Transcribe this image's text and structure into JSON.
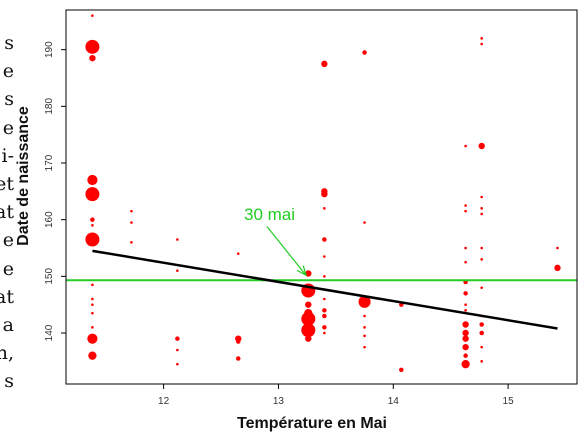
{
  "margin_text": [
    "s",
    "e",
    "s",
    "e",
    "i-",
    "et",
    "at",
    "e",
    "e",
    "at",
    "a",
    "n,",
    "s"
  ],
  "chart_data": {
    "type": "scatter",
    "xlabel": "Température en Mai",
    "ylabel": "Date de naissance",
    "xlim": [
      11.15,
      15.6
    ],
    "ylim": [
      131,
      197
    ],
    "xticks": [
      12,
      13,
      14,
      15
    ],
    "yticks": [
      140,
      150,
      160,
      170,
      180,
      190
    ],
    "grid": false,
    "colors": {
      "points": "#ff0000",
      "regression": "#000000",
      "reference": "#22cc22",
      "annotation": "#22cc22"
    },
    "points": [
      {
        "x": 11.38,
        "y": 196,
        "size": 1
      },
      {
        "x": 11.38,
        "y": 190.5,
        "size": 7
      },
      {
        "x": 11.38,
        "y": 188.5,
        "size": 3
      },
      {
        "x": 11.38,
        "y": 167,
        "size": 5
      },
      {
        "x": 11.38,
        "y": 164.5,
        "size": 7
      },
      {
        "x": 11.38,
        "y": 160,
        "size": 2
      },
      {
        "x": 11.38,
        "y": 159,
        "size": 1
      },
      {
        "x": 11.38,
        "y": 156.5,
        "size": 7
      },
      {
        "x": 11.38,
        "y": 148.5,
        "size": 1
      },
      {
        "x": 11.38,
        "y": 146,
        "size": 1
      },
      {
        "x": 11.38,
        "y": 145,
        "size": 1
      },
      {
        "x": 11.38,
        "y": 143.5,
        "size": 1
      },
      {
        "x": 11.38,
        "y": 141,
        "size": 1
      },
      {
        "x": 11.38,
        "y": 139,
        "size": 5
      },
      {
        "x": 11.38,
        "y": 136,
        "size": 4
      },
      {
        "x": 11.72,
        "y": 161.5,
        "size": 1
      },
      {
        "x": 11.72,
        "y": 159.5,
        "size": 1
      },
      {
        "x": 11.72,
        "y": 156,
        "size": 1
      },
      {
        "x": 12.12,
        "y": 156.5,
        "size": 1
      },
      {
        "x": 12.12,
        "y": 151,
        "size": 1
      },
      {
        "x": 12.12,
        "y": 139,
        "size": 2
      },
      {
        "x": 12.12,
        "y": 137,
        "size": 1
      },
      {
        "x": 12.12,
        "y": 134.5,
        "size": 1
      },
      {
        "x": 12.65,
        "y": 154,
        "size": 1
      },
      {
        "x": 12.65,
        "y": 139,
        "size": 3
      },
      {
        "x": 12.65,
        "y": 138.5,
        "size": 2
      },
      {
        "x": 12.65,
        "y": 135.5,
        "size": 2
      },
      {
        "x": 13.26,
        "y": 150.5,
        "size": 3
      },
      {
        "x": 13.26,
        "y": 147.5,
        "size": 7
      },
      {
        "x": 13.26,
        "y": 145,
        "size": 3
      },
      {
        "x": 13.26,
        "y": 143.5,
        "size": 4
      },
      {
        "x": 13.26,
        "y": 142.5,
        "size": 7
      },
      {
        "x": 13.26,
        "y": 141.5,
        "size": 4
      },
      {
        "x": 13.26,
        "y": 140.5,
        "size": 7
      },
      {
        "x": 13.26,
        "y": 139,
        "size": 3
      },
      {
        "x": 13.4,
        "y": 187.5,
        "size": 3
      },
      {
        "x": 13.4,
        "y": 165,
        "size": 3
      },
      {
        "x": 13.4,
        "y": 164.5,
        "size": 3
      },
      {
        "x": 13.4,
        "y": 162,
        "size": 1
      },
      {
        "x": 13.4,
        "y": 156.5,
        "size": 2
      },
      {
        "x": 13.4,
        "y": 153.5,
        "size": 1
      },
      {
        "x": 13.4,
        "y": 150,
        "size": 1
      },
      {
        "x": 13.4,
        "y": 146,
        "size": 1
      },
      {
        "x": 13.4,
        "y": 144,
        "size": 2
      },
      {
        "x": 13.4,
        "y": 143,
        "size": 2
      },
      {
        "x": 13.4,
        "y": 141,
        "size": 2
      },
      {
        "x": 13.4,
        "y": 140,
        "size": 1
      },
      {
        "x": 13.75,
        "y": 189.5,
        "size": 2
      },
      {
        "x": 13.75,
        "y": 159.5,
        "size": 1
      },
      {
        "x": 13.75,
        "y": 145.5,
        "size": 6
      },
      {
        "x": 13.75,
        "y": 143,
        "size": 1
      },
      {
        "x": 13.75,
        "y": 141,
        "size": 1
      },
      {
        "x": 13.75,
        "y": 139.5,
        "size": 1
      },
      {
        "x": 13.75,
        "y": 137.5,
        "size": 1
      },
      {
        "x": 14.07,
        "y": 145,
        "size": 2
      },
      {
        "x": 14.07,
        "y": 133.5,
        "size": 2
      },
      {
        "x": 14.63,
        "y": 173,
        "size": 1
      },
      {
        "x": 14.63,
        "y": 162.5,
        "size": 1
      },
      {
        "x": 14.63,
        "y": 161.5,
        "size": 1
      },
      {
        "x": 14.63,
        "y": 155,
        "size": 1
      },
      {
        "x": 14.63,
        "y": 152.5,
        "size": 1
      },
      {
        "x": 14.63,
        "y": 149,
        "size": 2
      },
      {
        "x": 14.63,
        "y": 147,
        "size": 2
      },
      {
        "x": 14.63,
        "y": 145,
        "size": 1
      },
      {
        "x": 14.63,
        "y": 144,
        "size": 1
      },
      {
        "x": 14.63,
        "y": 141.5,
        "size": 3
      },
      {
        "x": 14.63,
        "y": 140,
        "size": 3
      },
      {
        "x": 14.63,
        "y": 139,
        "size": 3
      },
      {
        "x": 14.63,
        "y": 137.5,
        "size": 3
      },
      {
        "x": 14.63,
        "y": 136,
        "size": 2
      },
      {
        "x": 14.63,
        "y": 134.5,
        "size": 4
      },
      {
        "x": 14.77,
        "y": 192,
        "size": 1
      },
      {
        "x": 14.77,
        "y": 191,
        "size": 1
      },
      {
        "x": 14.77,
        "y": 173,
        "size": 3
      },
      {
        "x": 14.77,
        "y": 164,
        "size": 1
      },
      {
        "x": 14.77,
        "y": 162,
        "size": 1
      },
      {
        "x": 14.77,
        "y": 161,
        "size": 1
      },
      {
        "x": 14.77,
        "y": 155,
        "size": 1
      },
      {
        "x": 14.77,
        "y": 153,
        "size": 1
      },
      {
        "x": 14.77,
        "y": 148,
        "size": 1
      },
      {
        "x": 14.77,
        "y": 143,
        "size": 1
      },
      {
        "x": 14.77,
        "y": 141.5,
        "size": 2
      },
      {
        "x": 14.77,
        "y": 140,
        "size": 2
      },
      {
        "x": 14.77,
        "y": 137.5,
        "size": 1
      },
      {
        "x": 14.77,
        "y": 135,
        "size": 1
      },
      {
        "x": 15.43,
        "y": 155,
        "size": 1
      },
      {
        "x": 15.43,
        "y": 151.5,
        "size": 3
      }
    ],
    "regression_line": {
      "x": [
        11.38,
        15.43
      ],
      "y": [
        154.5,
        140.8
      ]
    },
    "reference_line": {
      "y": 149.3
    },
    "annotation": {
      "text": "30 mai",
      "text_x": 12.7,
      "text_y": 161,
      "arrow_from": [
        12.9,
        158.8
      ],
      "arrow_to": [
        13.24,
        150.2
      ]
    }
  }
}
